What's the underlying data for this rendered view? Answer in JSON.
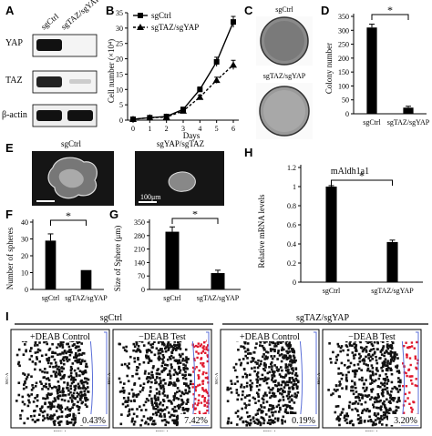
{
  "labels": {
    "A": "A",
    "B": "B",
    "C": "C",
    "D": "D",
    "E": "E",
    "F": "F",
    "G": "G",
    "H": "H",
    "I": "I"
  },
  "panelA": {
    "col1": "sgCtrl",
    "col2": "sgTAZ/sgYAP",
    "rows": [
      "YAP",
      "TAZ",
      "β-actin"
    ]
  },
  "panelC": {
    "top": "sgCtrl",
    "bottom": "sgTAZ/sgYAP"
  },
  "panelE": {
    "left": "sgCtrl",
    "right": "sgYAP/sgTAZ",
    "scale": "100μm"
  },
  "panelI": {
    "group1": "sgCtrl",
    "group2": "sgTAZ/sgYAP",
    "plots": [
      {
        "title": "+DEAB Control",
        "pct": "0.43%",
        "red": 0.0
      },
      {
        "title": "−DEAB Test",
        "pct": "7.42%",
        "red": 1.0
      },
      {
        "title": "+DEAB Control",
        "pct": "0.19%",
        "red": 0.0
      },
      {
        "title": "−DEAB Test",
        "pct": "3.20%",
        "red": 0.5
      }
    ],
    "xaxis": "FITC-A",
    "yaxis": "SSC-A"
  },
  "colors": {
    "black": "#000000",
    "gate": "#5b6fd8",
    "positive": "#e0192e"
  },
  "chart_data": [
    {
      "id": "B",
      "type": "line",
      "title": "",
      "xlabel": "Days",
      "ylabel": "Cell number (×10⁴)",
      "x": [
        0,
        1,
        2,
        3,
        4,
        5,
        6
      ],
      "xticks": [
        "0",
        "1",
        "2",
        "3",
        "4",
        "5",
        "6"
      ],
      "yticks": [
        "0",
        "5",
        "10",
        "15",
        "20",
        "25",
        "30",
        "35"
      ],
      "ylim": [
        0,
        35
      ],
      "legend": "top-left",
      "series": [
        {
          "name": "sgCtrl",
          "values": [
            0.3,
            0.8,
            1.2,
            3.5,
            10,
            19,
            32
          ],
          "err": [
            0,
            0,
            0,
            0.4,
            0.8,
            1.5,
            1.8
          ],
          "style": "solid-square"
        },
        {
          "name": "sgTAZ/sgYAP",
          "values": [
            0.3,
            0.8,
            1.0,
            3.0,
            7.5,
            13,
            18
          ],
          "err": [
            0,
            0,
            0,
            0.3,
            0.7,
            1.0,
            1.5
          ],
          "style": "dashed-triangle"
        }
      ]
    },
    {
      "id": "D",
      "type": "bar",
      "title": "",
      "xlabel": "",
      "ylabel": "Colony number",
      "categories": [
        "sgCtrl",
        "sgTAZ/sgYAP"
      ],
      "values": [
        310,
        22
      ],
      "err": [
        12,
        5
      ],
      "yticks": [
        "0",
        "50",
        "100",
        "150",
        "200",
        "250",
        "300",
        "350"
      ],
      "ylim": [
        0,
        350
      ],
      "significance": "*"
    },
    {
      "id": "F",
      "type": "bar",
      "title": "",
      "xlabel": "",
      "ylabel": "Number of spheres",
      "categories": [
        "sgCtrl",
        "sgTAZ/sgYAP"
      ],
      "values": [
        29,
        11.5
      ],
      "err": [
        4,
        0
      ],
      "yticks": [
        "0",
        "10",
        "20",
        "30",
        "40"
      ],
      "ylim": [
        0,
        40
      ],
      "significance": "*"
    },
    {
      "id": "G",
      "type": "bar",
      "title": "",
      "xlabel": "",
      "ylabel": "Size of Sphere (μm)",
      "categories": [
        "sgCtrl",
        "sgTAZ/sgYAP"
      ],
      "values": [
        300,
        85
      ],
      "err": [
        25,
        15
      ],
      "yticks": [
        "0",
        "70",
        "140",
        "210",
        "280",
        "350"
      ],
      "ylim": [
        0,
        350
      ],
      "significance": "*"
    },
    {
      "id": "H",
      "type": "bar",
      "title": "mAldh1a1",
      "xlabel": "",
      "ylabel": "Relative mRNA levels",
      "categories": [
        "sgCtrl",
        "sgTAZ/sgYAP"
      ],
      "values": [
        1.0,
        0.42
      ],
      "err": [
        0.01,
        0.02
      ],
      "yticks": [
        "0",
        "0.2",
        "0.4",
        "0.6",
        "0.8",
        "1",
        "1.2"
      ],
      "ylim": [
        0,
        1.2
      ],
      "significance": "*"
    }
  ]
}
